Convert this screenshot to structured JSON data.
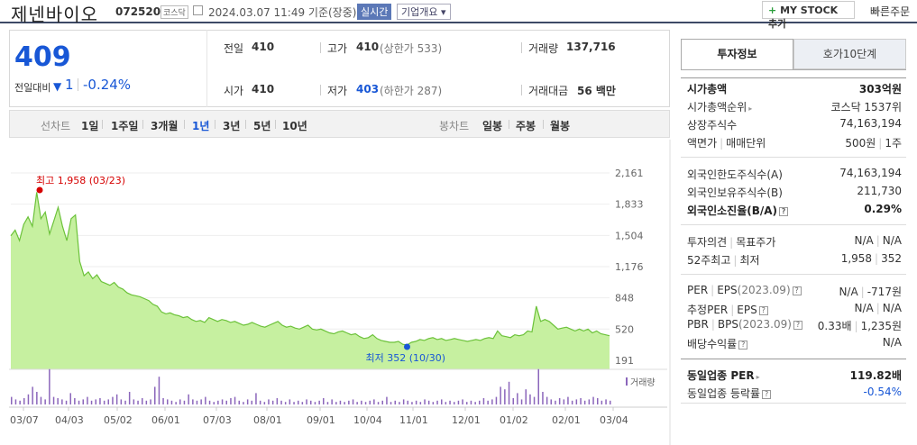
{
  "header": {
    "stock_name": "제넨바이오",
    "stock_code": "072520",
    "market": "코스닥",
    "datetime": "2024.03.07 11:49 기준(장중)",
    "realtime_label": "실시간",
    "company_label": "기업개요",
    "mystock_label": "MY STOCK 추가",
    "quick_order_label": "빠른주문"
  },
  "price": {
    "current": "409",
    "change_label": "전일대비",
    "change_value": "1",
    "change_pct": "-0.24%"
  },
  "quote": {
    "prev_close_label": "전일",
    "prev_close": "410",
    "high_label": "고가",
    "high": "410",
    "upper_limit": "(상한가 533)",
    "volume_label": "거래량",
    "volume": "137,716",
    "open_label": "시가",
    "open": "410",
    "low_label": "저가",
    "low": "403",
    "lower_limit": "(하한가 287)",
    "amount_label": "거래대금",
    "amount": "56 백만"
  },
  "periods": {
    "line_label": "선차트",
    "line_items": [
      "1일",
      "1주일",
      "3개월",
      "1년",
      "3년",
      "5년",
      "10년"
    ],
    "active": "1년",
    "candle_label": "봉차트",
    "candle_items": [
      "일봉",
      "주봉",
      "월봉"
    ]
  },
  "chart_data": {
    "type": "area",
    "x_labels": [
      "03/07",
      "04/03",
      "05/02",
      "06/01",
      "07/03",
      "08/01",
      "09/01",
      "10/04",
      "11/01",
      "12/01",
      "01/02",
      "02/01",
      "03/04"
    ],
    "y_ticks": [
      2161,
      1833,
      1504,
      1176,
      848,
      520,
      191
    ],
    "ylim": [
      191,
      2161
    ],
    "max_label": "최고 1,958 (03/23)",
    "min_label": "최저 352 (10/30)",
    "volume_label": "거래량",
    "price_series": [
      1500,
      1560,
      1450,
      1620,
      1700,
      1600,
      1958,
      1680,
      1750,
      1520,
      1660,
      1800,
      1600,
      1450,
      1680,
      1720,
      1230,
      1080,
      1120,
      1050,
      1090,
      1020,
      1000,
      980,
      1010,
      960,
      940,
      900,
      880,
      870,
      860,
      840,
      820,
      780,
      760,
      700,
      680,
      690,
      670,
      660,
      640,
      650,
      620,
      600,
      610,
      590,
      640,
      620,
      600,
      620,
      610,
      590,
      600,
      580,
      560,
      570,
      590,
      570,
      550,
      540,
      560,
      580,
      600,
      560,
      540,
      550,
      530,
      520,
      540,
      560,
      520,
      510,
      520,
      500,
      480,
      470,
      490,
      500,
      480,
      460,
      470,
      440,
      420,
      430,
      460,
      420,
      400,
      390,
      380,
      380,
      390,
      360,
      352,
      380,
      390,
      410,
      400,
      420,
      430,
      410,
      420,
      400,
      410,
      420,
      410,
      400,
      390,
      400,
      410,
      400,
      420,
      430,
      420,
      500,
      450,
      440,
      430,
      460,
      450,
      460,
      500,
      490,
      760,
      600,
      620,
      600,
      560,
      520,
      530,
      540,
      520,
      500,
      520,
      500,
      520,
      480,
      500,
      470,
      460,
      450
    ]
  },
  "info": {
    "tab_info": "투자정보",
    "tab_orderbook": "호가10단계",
    "market_cap_label": "시가총액",
    "market_cap": "303억원",
    "rank_label": "시가총액순위",
    "rank": "코스닥 1537위",
    "shares_label": "상장주식수",
    "shares": "74,163,194",
    "face_label": "액면가",
    "unit_label": "매매단위",
    "face": "500원",
    "unit": "1주",
    "foreign_limit_label": "외국인한도주식수(A)",
    "foreign_limit": "74,163,194",
    "foreign_hold_label": "외국인보유주식수(B)",
    "foreign_hold": "211,730",
    "foreign_ratio_label": "외국인소진율(B/A)",
    "foreign_ratio": "0.29%",
    "opinion_label": "투자의견",
    "target_label": "목표주가",
    "opinion": "N/A",
    "target": "N/A",
    "w52_high_label": "52주최고",
    "w52_low_label": "최저",
    "w52_high": "1,958",
    "w52_low": "352",
    "per_label": "PER",
    "eps_label": "EPS",
    "year_2023": "(2023.09)",
    "per": "N/A",
    "eps": "-717원",
    "est_per_label": "추정PER",
    "est_eps_label": "EPS",
    "est_per": "N/A",
    "est_eps": "N/A",
    "pbr_label": "PBR",
    "bps_label": "BPS",
    "pbr": "0.33배",
    "bps": "1,235원",
    "div_label": "배당수익률",
    "div": "N/A",
    "sector_per_label": "동일업종 PER",
    "sector_per": "119.82배",
    "sector_chg_label": "동일업종 등락률",
    "sector_chg": "-0.54%"
  },
  "colors": {
    "up": "#d60000",
    "down": "#1857d6",
    "area_fill": "#c6f0a0",
    "area_line": "#6cc23a"
  }
}
